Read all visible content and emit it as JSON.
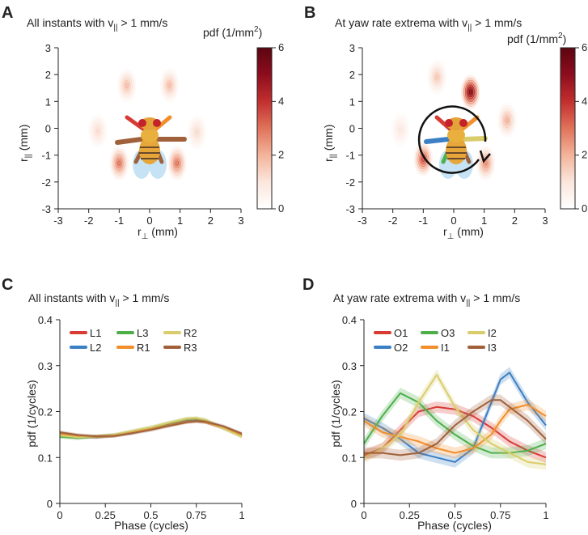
{
  "panels": {
    "A": {
      "letter": "A",
      "title_main": "All instants with v",
      "title_sub": "||",
      "title_tail": " > 1 mm/s",
      "xlabel_main": "r",
      "xlabel_sub": "⊥",
      "xlabel_tail": " (mm)",
      "ylabel_main": "r",
      "ylabel_sub": "||",
      "ylabel_tail": " (mm)"
    },
    "B": {
      "letter": "B",
      "title_main": "At yaw rate extrema with v",
      "title_sub": "||",
      "title_tail": " > 1 mm/s",
      "xlabel_main": "r",
      "xlabel_sub": "⊥",
      "xlabel_tail": " (mm)",
      "ylabel_main": "r",
      "ylabel_sub": "||",
      "ylabel_tail": " (mm)"
    },
    "C": {
      "letter": "C",
      "title_main": "All instants with v",
      "title_sub": "||",
      "title_tail": " > 1 mm/s"
    },
    "D": {
      "letter": "D",
      "title_main": "At yaw rate extrema with v",
      "title_sub": "||",
      "title_tail": " > 1 mm/s"
    }
  },
  "colorbar": {
    "label_main": "pdf (1/mm",
    "label_sup": "2",
    "label_tail": ")",
    "ticks": [
      "0",
      "2",
      "4",
      "6"
    ],
    "range": [
      0,
      6
    ],
    "colors": [
      "#ffffff",
      "#fbe6dd",
      "#f3b49b",
      "#e0735a",
      "#c22f2f",
      "#8d0d1d",
      "#5d0511"
    ]
  },
  "chart_data": [
    {
      "type": "heatmap",
      "panel": "A",
      "xlim": [
        -3,
        3
      ],
      "ylim": [
        -3,
        3
      ],
      "xticks": [
        "-3",
        "-2",
        "-1",
        "0",
        "1",
        "2",
        "3"
      ],
      "yticks": [
        "3",
        "2",
        "1",
        "0",
        "-1",
        "-2",
        "-3"
      ],
      "blobs": [
        {
          "leg": "L1",
          "x": -0.75,
          "y": 1.6,
          "peak": 1.8
        },
        {
          "leg": "R1",
          "x": 0.65,
          "y": 1.6,
          "peak": 1.8
        },
        {
          "leg": "L2",
          "x": -1.7,
          "y": -0.1,
          "peak": 1.2
        },
        {
          "leg": "R2",
          "x": 1.55,
          "y": -0.15,
          "peak": 1.2
        },
        {
          "leg": "L3",
          "x": -1.0,
          "y": -1.3,
          "peak": 3.0
        },
        {
          "leg": "R3",
          "x": 0.9,
          "y": -1.3,
          "peak": 3.0
        }
      ]
    },
    {
      "type": "heatmap",
      "panel": "B",
      "xlim": [
        -3,
        3
      ],
      "ylim": [
        -3,
        3
      ],
      "xticks": [
        "-3",
        "-2",
        "-1",
        "0",
        "1",
        "2",
        "3"
      ],
      "yticks": [
        "3",
        "2",
        "1",
        "0",
        "-1",
        "-2",
        "-3"
      ],
      "blobs": [
        {
          "leg": "L1",
          "x": -0.55,
          "y": 1.9,
          "peak": 1.6
        },
        {
          "leg": "R1",
          "x": 0.55,
          "y": 1.35,
          "peak": 5.5
        },
        {
          "leg": "L2",
          "x": -1.75,
          "y": -0.05,
          "peak": 0.9
        },
        {
          "leg": "R2",
          "x": 1.75,
          "y": 0.3,
          "peak": 2.0
        },
        {
          "leg": "L3",
          "x": -1.0,
          "y": -1.15,
          "peak": 3.6
        },
        {
          "leg": "R3",
          "x": 1.05,
          "y": -1.3,
          "peak": 2.6
        }
      ]
    },
    {
      "type": "line",
      "panel": "C",
      "xlabel": "Phase (cycles)",
      "ylabel": "pdf (1/cycles)",
      "xlim": [
        0,
        1
      ],
      "ylim": [
        0,
        0.4
      ],
      "xticks": [
        "0",
        "0.25",
        "0.5",
        "0.75",
        "1"
      ],
      "yticks": [
        "0.4",
        "0.3",
        "0.2",
        "0.1",
        "0"
      ],
      "x": [
        0,
        0.1,
        0.2,
        0.3,
        0.4,
        0.5,
        0.6,
        0.7,
        0.75,
        0.8,
        0.9,
        1
      ],
      "series": [
        {
          "name": "L1",
          "color": "#d83a34",
          "values": [
            0.15,
            0.145,
            0.145,
            0.148,
            0.155,
            0.163,
            0.172,
            0.18,
            0.181,
            0.178,
            0.165,
            0.148
          ]
        },
        {
          "name": "L2",
          "color": "#3b7fc4",
          "values": [
            0.152,
            0.146,
            0.144,
            0.148,
            0.154,
            0.162,
            0.171,
            0.179,
            0.18,
            0.177,
            0.166,
            0.15
          ]
        },
        {
          "name": "L3",
          "color": "#4daf4a",
          "values": [
            0.145,
            0.142,
            0.146,
            0.149,
            0.157,
            0.165,
            0.175,
            0.184,
            0.185,
            0.181,
            0.164,
            0.146
          ]
        },
        {
          "name": "R1",
          "color": "#f28e2b",
          "values": [
            0.151,
            0.147,
            0.145,
            0.147,
            0.155,
            0.162,
            0.17,
            0.178,
            0.179,
            0.177,
            0.164,
            0.149
          ]
        },
        {
          "name": "R2",
          "color": "#d9cd6b",
          "values": [
            0.148,
            0.144,
            0.146,
            0.15,
            0.158,
            0.166,
            0.176,
            0.185,
            0.186,
            0.182,
            0.163,
            0.145
          ]
        },
        {
          "name": "R3",
          "color": "#a0613a",
          "values": [
            0.155,
            0.149,
            0.146,
            0.147,
            0.153,
            0.16,
            0.169,
            0.177,
            0.179,
            0.178,
            0.168,
            0.152
          ]
        }
      ]
    },
    {
      "type": "line",
      "panel": "D",
      "xlabel": "Phase (cycles)",
      "ylabel": "pdf (1/cycles)",
      "xlim": [
        0,
        1
      ],
      "ylim": [
        0,
        0.4
      ],
      "xticks": [
        "0",
        "0.25",
        "0.5",
        "0.75",
        "1"
      ],
      "yticks": [
        "0.4",
        "0.3",
        "0.2",
        "0.1",
        "0"
      ],
      "x": [
        0,
        0.1,
        0.2,
        0.3,
        0.4,
        0.5,
        0.6,
        0.7,
        0.75,
        0.8,
        0.9,
        1
      ],
      "series": [
        {
          "name": "O1",
          "color": "#d83a34",
          "values": [
            0.105,
            0.12,
            0.16,
            0.2,
            0.21,
            0.205,
            0.19,
            0.165,
            0.15,
            0.135,
            0.115,
            0.1
          ]
        },
        {
          "name": "O2",
          "color": "#3b7fc4",
          "values": [
            0.185,
            0.165,
            0.14,
            0.11,
            0.1,
            0.09,
            0.12,
            0.22,
            0.27,
            0.285,
            0.22,
            0.17
          ]
        },
        {
          "name": "O3",
          "color": "#4daf4a",
          "values": [
            0.13,
            0.19,
            0.24,
            0.22,
            0.18,
            0.15,
            0.125,
            0.11,
            0.11,
            0.11,
            0.115,
            0.13
          ]
        },
        {
          "name": "I1",
          "color": "#f28e2b",
          "values": [
            0.18,
            0.155,
            0.145,
            0.135,
            0.12,
            0.11,
            0.12,
            0.15,
            0.18,
            0.205,
            0.215,
            0.19
          ]
        },
        {
          "name": "I2",
          "color": "#d9cd6b",
          "values": [
            0.1,
            0.12,
            0.15,
            0.22,
            0.28,
            0.21,
            0.16,
            0.13,
            0.12,
            0.11,
            0.09,
            0.085
          ]
        },
        {
          "name": "I3",
          "color": "#a0613a",
          "values": [
            0.11,
            0.11,
            0.105,
            0.11,
            0.13,
            0.17,
            0.2,
            0.225,
            0.225,
            0.21,
            0.18,
            0.14
          ]
        }
      ]
    }
  ]
}
